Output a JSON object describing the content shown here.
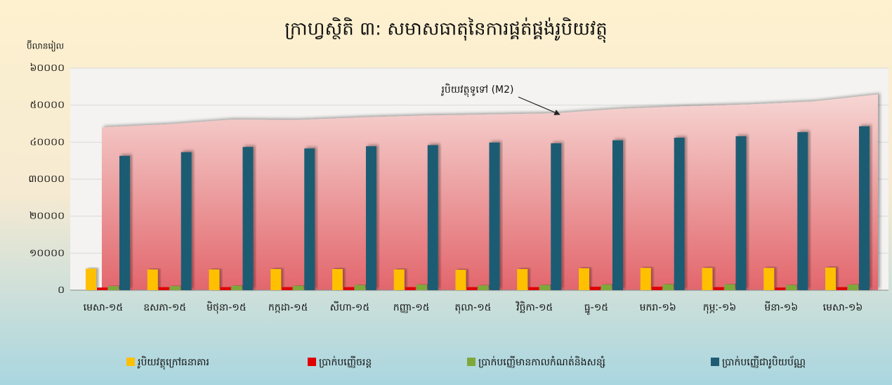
{
  "chart_data": {
    "type": "bar",
    "title": "ក្រាហ្វស្ថិតិ ៣: សមាសធាតុនៃការផ្គត់ផ្គង់រូបិយវត្ថុ",
    "y_label": "ប៊ីលានរៀល",
    "categories": [
      "មេសា-១៥",
      "ឧសភា-១៥",
      "មិថុនា-១៥",
      "កក្កដា-១៥",
      "សីហា-១៥",
      "កញ្ញា-១៥",
      "តុលា-១៥",
      "វិច្ឆិកា-១៥",
      "ធ្នូ-១៥",
      "មករា-១៦",
      "កុម្ភៈ-១៦",
      "មីនា-១៦",
      "មេសា-១៦"
    ],
    "ylim": [
      0,
      60000
    ],
    "yticks": [
      {
        "value": 0,
        "label": "០"
      },
      {
        "value": 10000,
        "label": "១០០០០"
      },
      {
        "value": 20000,
        "label": "២០០០០"
      },
      {
        "value": 30000,
        "label": "៣០០០០"
      },
      {
        "value": 40000,
        "label": "៤០០០០"
      },
      {
        "value": 50000,
        "label": "៥០០០០"
      },
      {
        "value": 60000,
        "label": "៦០០០០"
      }
    ],
    "grid": true,
    "series": [
      {
        "name": "រូបិយវត្ថុក្រៅធនាគារ",
        "color": "#ffc000",
        "values": [
          5800,
          5600,
          5600,
          5700,
          5700,
          5600,
          5500,
          5700,
          5900,
          6000,
          6000,
          6000,
          6100
        ]
      },
      {
        "name": "ប្រាក់បញ្ញើចរន្ត",
        "color": "#e00000",
        "values": [
          700,
          800,
          800,
          800,
          800,
          800,
          800,
          800,
          900,
          900,
          800,
          700,
          800
        ]
      },
      {
        "name": "ប្រាក់បញ្ញើមានកាលកំណត់និងសន្សំ",
        "color": "#7fa83a",
        "values": [
          1100,
          1100,
          1200,
          1200,
          1400,
          1500,
          1300,
          1400,
          1500,
          1600,
          1600,
          1400,
          1500
        ]
      },
      {
        "name": "ប្រាក់បញ្ញើជារូបិយប័ណ្ណ",
        "color": "#1f5c73",
        "values": [
          36300,
          37300,
          38700,
          38300,
          38900,
          39200,
          39900,
          39700,
          40500,
          41200,
          41600,
          42700,
          44300
        ]
      },
      {
        "name": "រូបិយវត្ថុទូទៅ (M2)",
        "type": "area",
        "values": [
          44000,
          44800,
          46100,
          46000,
          46700,
          47200,
          47500,
          47800,
          49000,
          49700,
          50200,
          51000,
          52900
        ]
      }
    ]
  }
}
